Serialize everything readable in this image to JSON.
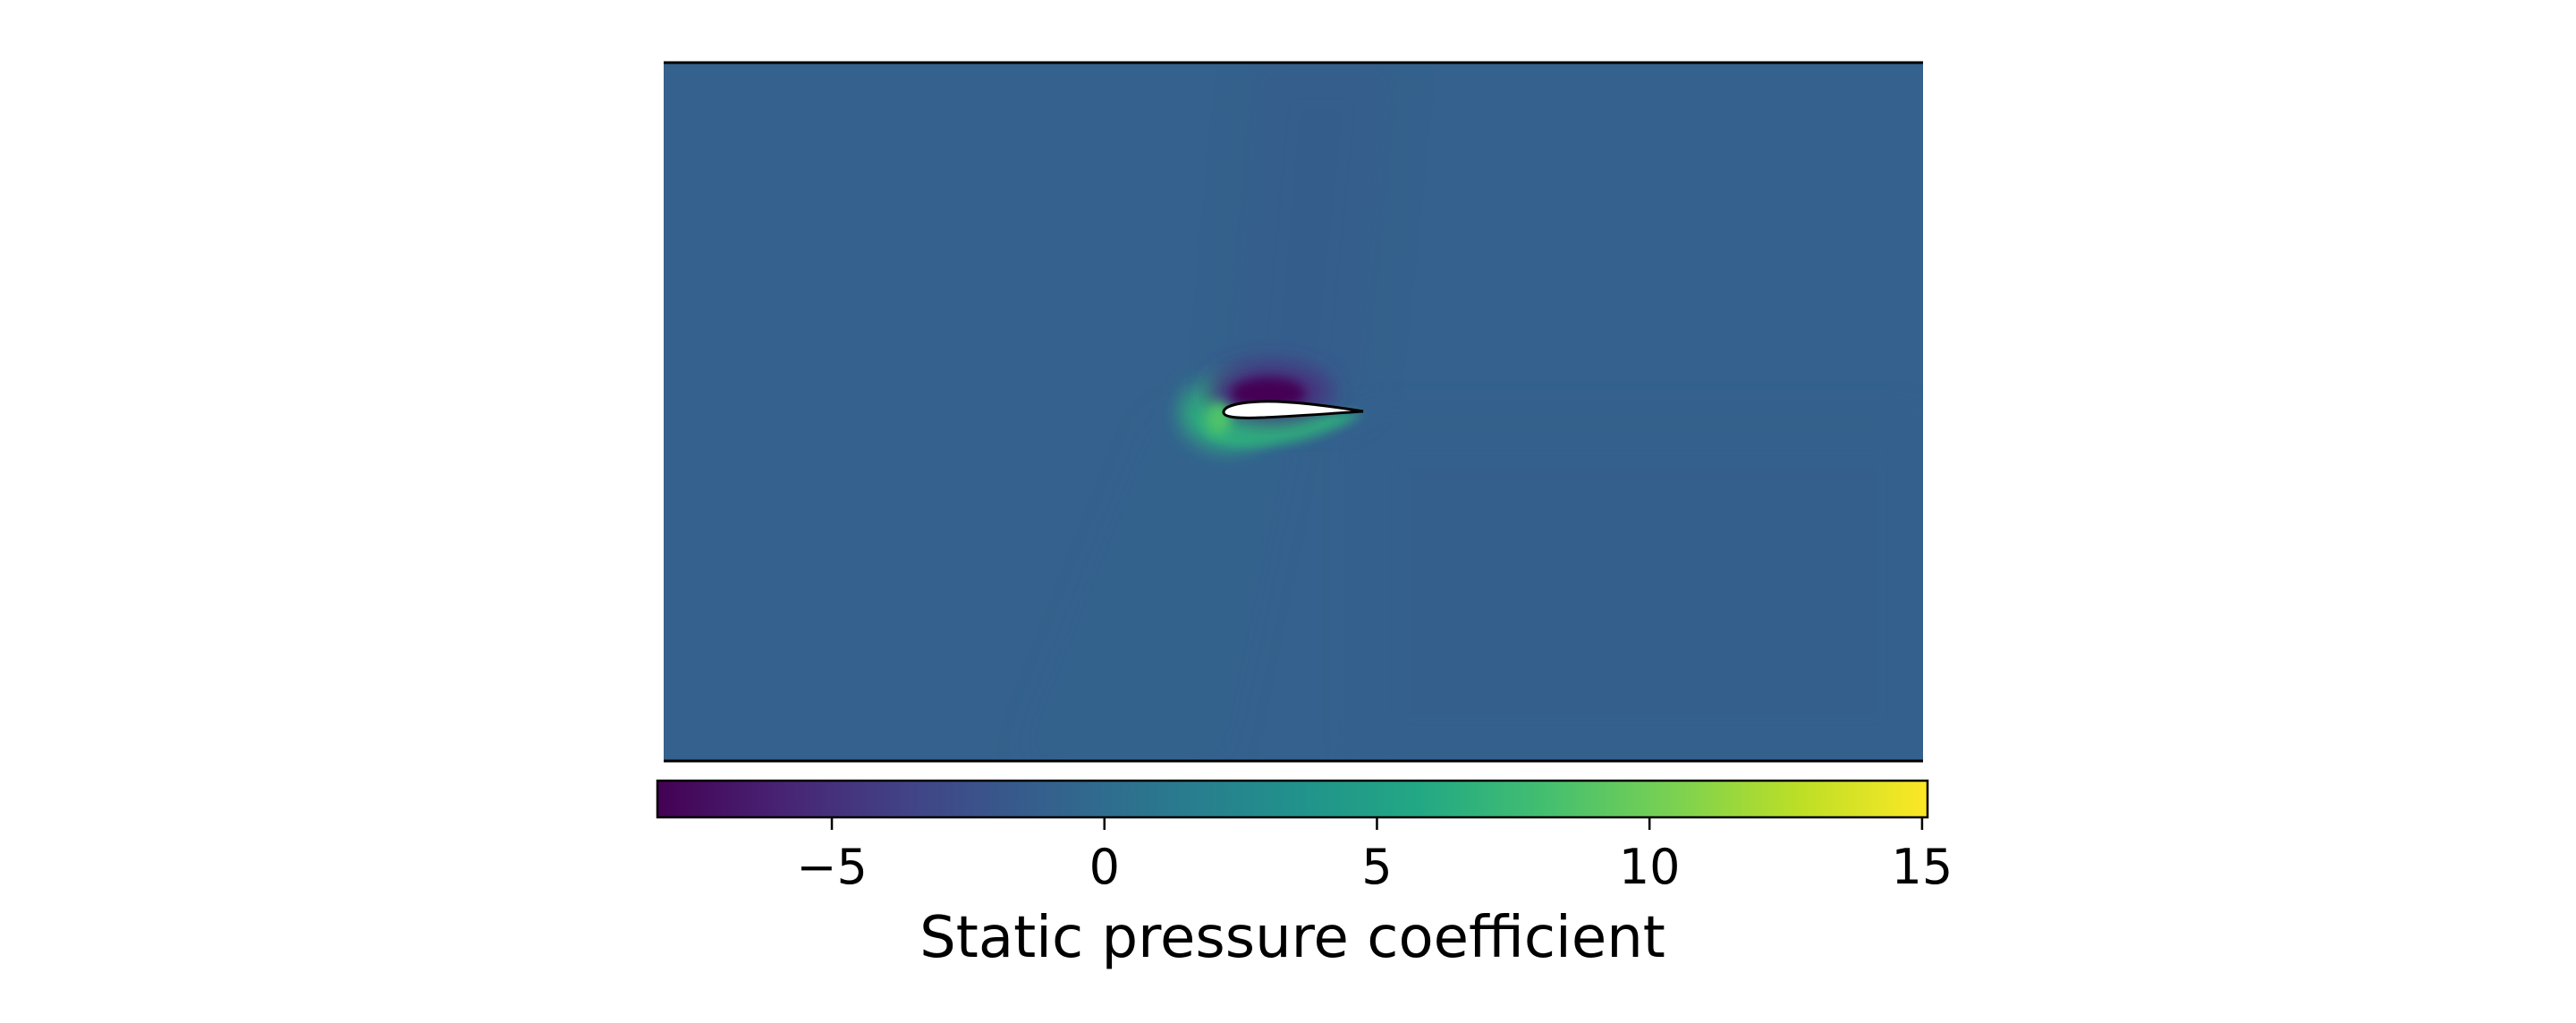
{
  "chart_data": {
    "type": "heatmap",
    "title": "",
    "subtitle": "",
    "colormap": "viridis",
    "colorbar": {
      "label": "Static pressure coefficient",
      "range": [
        -8.2,
        15.1
      ],
      "ticks": [
        -5,
        0,
        5,
        10,
        15
      ],
      "tick_labels": [
        "−5",
        "0",
        "5",
        "10",
        "15"
      ],
      "orientation": "horizontal",
      "placement": "bottom"
    },
    "field": {
      "freestream_value": -1.0,
      "upper_surface_min": -8.2,
      "stagnation_max": 8.5,
      "lower_surface_value": 6.5,
      "object": "airfoil"
    },
    "grid": false,
    "axes_visible": false
  }
}
